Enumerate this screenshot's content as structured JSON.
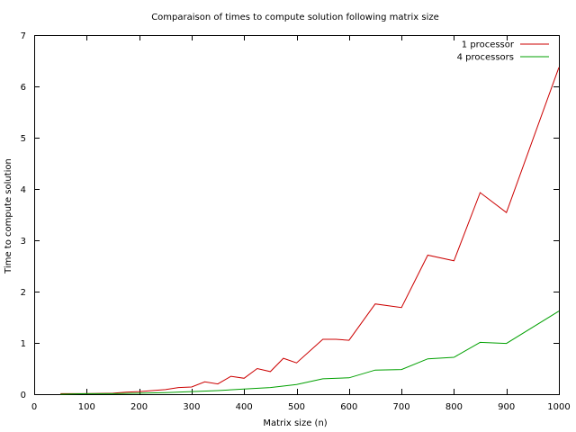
{
  "chart_data": {
    "type": "line",
    "title": "Comparaison of times to compute solution following matrix size",
    "xlabel": "Matrix size (n)",
    "ylabel": "Time to compute solution",
    "xlim": [
      0,
      1000
    ],
    "ylim": [
      0,
      7
    ],
    "xticks": [
      0,
      100,
      200,
      300,
      400,
      500,
      600,
      700,
      800,
      900,
      1000
    ],
    "yticks": [
      0,
      1,
      2,
      3,
      4,
      5,
      6,
      7
    ],
    "grid": false,
    "legend_position": "top-right",
    "series": [
      {
        "name": "1 processor",
        "color": "#cc0000",
        "x": [
          50,
          100,
          150,
          175,
          200,
          225,
          250,
          275,
          300,
          325,
          350,
          375,
          400,
          425,
          450,
          475,
          500,
          550,
          575,
          600,
          650,
          700,
          750,
          800,
          850,
          900,
          1000
        ],
        "y": [
          0.01,
          0.01,
          0.02,
          0.04,
          0.05,
          0.07,
          0.09,
          0.13,
          0.14,
          0.24,
          0.2,
          0.35,
          0.31,
          0.5,
          0.44,
          0.7,
          0.61,
          1.07,
          1.07,
          1.05,
          1.76,
          1.69,
          2.71,
          2.6,
          3.93,
          3.54,
          6.37
        ]
      },
      {
        "name": "4 processors",
        "color": "#00a000",
        "x": [
          50,
          100,
          150,
          200,
          250,
          300,
          350,
          400,
          450,
          500,
          550,
          600,
          650,
          700,
          750,
          800,
          850,
          900,
          1000
        ],
        "y": [
          0.0,
          0.01,
          0.01,
          0.02,
          0.03,
          0.05,
          0.07,
          0.1,
          0.13,
          0.19,
          0.3,
          0.32,
          0.47,
          0.48,
          0.69,
          0.72,
          1.01,
          0.99,
          1.62
        ]
      }
    ]
  }
}
